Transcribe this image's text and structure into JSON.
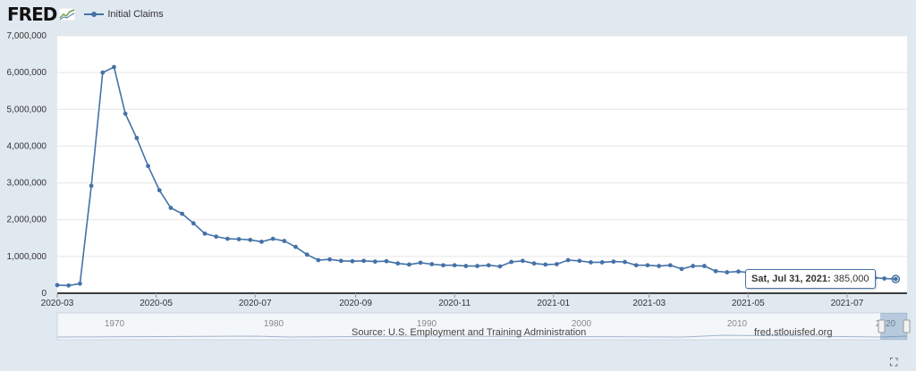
{
  "header": {
    "logo_text": "FRED",
    "logo_icon": "fred-graph-icon",
    "series_label": "Initial Claims",
    "series_color": "#4572a7"
  },
  "chart_data": {
    "type": "line",
    "title": "",
    "xlabel": "",
    "ylabel": "",
    "ylim": [
      0,
      7000000
    ],
    "y_ticks": [
      0,
      1000000,
      2000000,
      3000000,
      4000000,
      5000000,
      6000000,
      7000000
    ],
    "y_tick_labels": [
      "0",
      "1,000,000",
      "2,000,000",
      "3,000,000",
      "4,000,000",
      "5,000,000",
      "6,000,000",
      "7,000,000"
    ],
    "x_range": [
      "2020-03-01",
      "2021-08-07"
    ],
    "x_ticks": [
      "2020-03-01",
      "2020-05-01",
      "2020-07-01",
      "2020-09-01",
      "2020-11-01",
      "2021-01-01",
      "2021-03-01",
      "2021-05-01",
      "2021-07-01"
    ],
    "x_tick_labels": [
      "2020-03",
      "2020-05",
      "2020-07",
      "2020-09",
      "2020-11",
      "2021-01",
      "2021-03",
      "2021-05",
      "2021-07"
    ],
    "grid": "horizontal",
    "series": [
      {
        "name": "Initial Claims",
        "color": "#4572a7",
        "x": [
          "2020-03-01",
          "2020-03-08",
          "2020-03-15",
          "2020-03-22",
          "2020-03-29",
          "2020-04-05",
          "2020-04-12",
          "2020-04-19",
          "2020-04-26",
          "2020-05-03",
          "2020-05-10",
          "2020-05-17",
          "2020-05-24",
          "2020-05-31",
          "2020-06-07",
          "2020-06-14",
          "2020-06-21",
          "2020-06-28",
          "2020-07-05",
          "2020-07-12",
          "2020-07-19",
          "2020-07-26",
          "2020-08-02",
          "2020-08-09",
          "2020-08-16",
          "2020-08-23",
          "2020-08-30",
          "2020-09-06",
          "2020-09-13",
          "2020-09-20",
          "2020-09-27",
          "2020-10-04",
          "2020-10-11",
          "2020-10-18",
          "2020-10-25",
          "2020-11-01",
          "2020-11-08",
          "2020-11-15",
          "2020-11-22",
          "2020-11-29",
          "2020-12-06",
          "2020-12-13",
          "2020-12-20",
          "2020-12-27",
          "2021-01-03",
          "2021-01-10",
          "2021-01-17",
          "2021-01-24",
          "2021-01-31",
          "2021-02-07",
          "2021-02-14",
          "2021-02-21",
          "2021-02-28",
          "2021-03-07",
          "2021-03-14",
          "2021-03-21",
          "2021-03-28",
          "2021-04-04",
          "2021-04-11",
          "2021-04-18",
          "2021-04-25",
          "2021-05-02",
          "2021-05-09",
          "2021-05-16",
          "2021-05-23",
          "2021-05-30",
          "2021-06-06",
          "2021-06-13",
          "2021-06-20",
          "2021-06-27",
          "2021-07-04",
          "2021-07-11",
          "2021-07-18",
          "2021-07-24",
          "2021-07-31"
        ],
        "values": [
          220000,
          210000,
          260000,
          2920000,
          6000000,
          6150000,
          4880000,
          4220000,
          3460000,
          2800000,
          2320000,
          2160000,
          1900000,
          1620000,
          1540000,
          1480000,
          1470000,
          1450000,
          1400000,
          1480000,
          1420000,
          1260000,
          1050000,
          900000,
          920000,
          880000,
          870000,
          880000,
          860000,
          870000,
          810000,
          780000,
          830000,
          790000,
          760000,
          760000,
          740000,
          740000,
          760000,
          730000,
          850000,
          880000,
          810000,
          780000,
          790000,
          900000,
          880000,
          840000,
          840000,
          860000,
          850000,
          760000,
          760000,
          740000,
          760000,
          660000,
          740000,
          740000,
          600000,
          570000,
          590000,
          560000,
          500000,
          470000,
          420000,
          430000,
          440000,
          410000,
          420000,
          400000,
          410000,
          380000,
          420000,
          400000,
          385000
        ]
      }
    ]
  },
  "navigator": {
    "years": [
      "1970",
      "1980",
      "1990",
      "2000",
      "2010",
      "2020"
    ]
  },
  "tooltip": {
    "date": "Sat, Jul 31, 2021:",
    "value": "385,000"
  },
  "footer": {
    "source": "Source: U.S. Employment and Training Administration",
    "url": "fred.stlouisfed.org"
  }
}
